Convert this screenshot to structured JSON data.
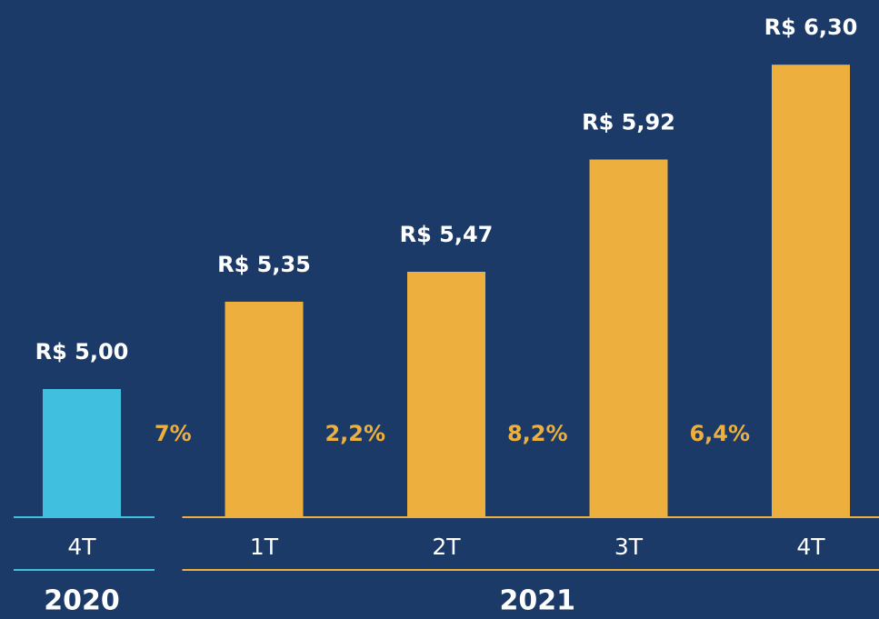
{
  "chart_data": {
    "type": "bar",
    "categories": [
      "4T",
      "1T",
      "2T",
      "3T",
      "4T"
    ],
    "values": [
      5.0,
      5.35,
      5.47,
      5.92,
      6.3
    ],
    "value_labels": [
      "R$ 5,00",
      "R$ 5,35",
      "R$ 5,47",
      "R$ 5,92",
      "R$ 6,30"
    ],
    "colors": [
      "#40c0de",
      "#edaf3e",
      "#edaf3e",
      "#edaf3e",
      "#edaf3e"
    ],
    "annotations": [
      "7%",
      "2,2%",
      "8,2%",
      "6,4%"
    ],
    "annotation_color": "#edaf3e",
    "groups": [
      {
        "name": "2020",
        "color": "#40c0de",
        "count": 1
      },
      {
        "name": "2021",
        "color": "#edaf3e",
        "count": 4
      }
    ],
    "ylim": [
      4.49,
      6.45
    ]
  }
}
